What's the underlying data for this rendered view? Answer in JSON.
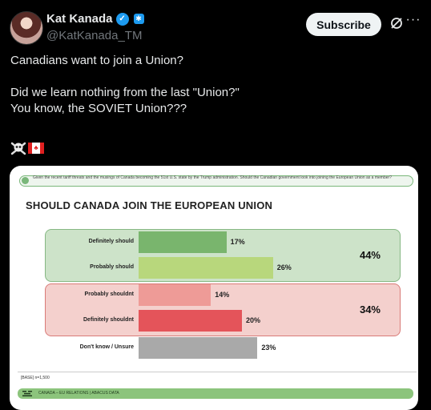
{
  "author": {
    "name": "Kat Kanada",
    "handle": "@KatKanada_TM"
  },
  "actions": {
    "subscribe_label": "Subscribe"
  },
  "tweet": {
    "line1": "Canadians want to join a Union?",
    "line2": "Did we learn nothing from the last \"Union?\"",
    "line3": "You know, the SOVIET Union???",
    "emojis": [
      "skull-and-crossbones",
      "canada-flag"
    ]
  },
  "poll_image": {
    "question": "Given the recent tariff threats and the musings of Canada becoming the 51st U.S. state by the Trump administration. Should the Canadian government look into joining the European Union as a member?",
    "base_note": "[BASE] n=1,500",
    "footer": "CANADA – EU RELATIONS | ABACUS DATA",
    "colors": {
      "support_bg": "#cde3c9",
      "oppose_bg": "#f4d0cd",
      "footer": "#8cc47c"
    }
  },
  "chart_data": {
    "type": "bar",
    "title": "SHOULD CANADA JOIN THE EUROPEAN UNION",
    "orientation": "horizontal",
    "categories": [
      "Definitely should",
      "Probably should",
      "Probably shouldnt",
      "Definitely shouldnt",
      "Don't know / Unsure"
    ],
    "values": [
      17,
      26,
      14,
      20,
      23
    ],
    "value_labels": [
      "17%",
      "26%",
      "14%",
      "20%",
      "23%"
    ],
    "bar_colors": [
      "#79b56d",
      "#b8d77c",
      "#ee9b97",
      "#e4545a",
      "#a9a9a9"
    ],
    "group_totals": [
      {
        "label": "44%",
        "categories": [
          "Definitely should",
          "Probably should"
        ]
      },
      {
        "label": "34%",
        "categories": [
          "Probably shouldnt",
          "Definitely shouldnt"
        ]
      }
    ],
    "xlim": [
      0,
      100
    ]
  }
}
